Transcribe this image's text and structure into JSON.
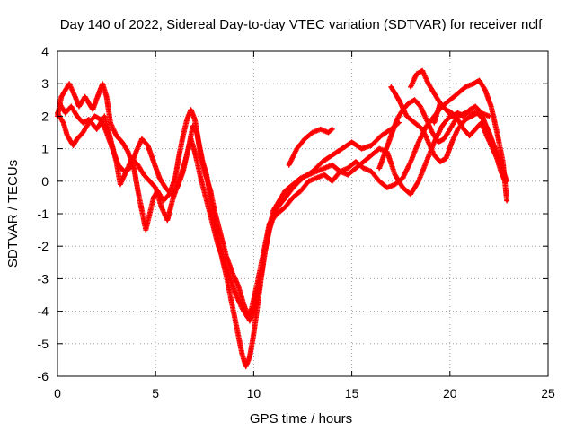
{
  "chart_data": {
    "type": "scatter",
    "title": "Day 140 of 2022, Sidereal Day-to-day VTEC variation (SDTVAR) for receiver nclf",
    "xlabel": "GPS time / hours",
    "ylabel": "SDTVAR / TECUs",
    "xlim": [
      0,
      25
    ],
    "ylim": [
      -6,
      4
    ],
    "xticks": [
      0,
      5,
      10,
      15,
      20,
      25
    ],
    "yticks": [
      -6,
      -5,
      -4,
      -3,
      -2,
      -1,
      0,
      1,
      2,
      3,
      4
    ],
    "grid": true,
    "marker": "plus",
    "color": "#ff0000",
    "series": [
      {
        "points": [
          [
            0.0,
            2.0
          ],
          [
            0.2,
            2.6
          ],
          [
            0.6,
            3.0
          ],
          [
            0.9,
            2.6
          ],
          [
            1.1,
            2.3
          ],
          [
            1.4,
            2.6
          ],
          [
            1.8,
            2.2
          ],
          [
            2.1,
            2.7
          ],
          [
            2.3,
            3.0
          ],
          [
            2.5,
            2.6
          ],
          [
            2.7,
            1.8
          ],
          [
            3.0,
            1.4
          ],
          [
            3.3,
            1.2
          ],
          [
            3.6,
            0.9
          ],
          [
            3.9,
            0.4
          ],
          [
            4.1,
            -0.3
          ],
          [
            4.3,
            -0.9
          ],
          [
            4.5,
            -1.5
          ],
          [
            4.7,
            -1.0
          ],
          [
            4.9,
            -0.5
          ],
          [
            5.1,
            -0.3
          ],
          [
            5.4,
            -0.6
          ],
          [
            5.7,
            -0.4
          ],
          [
            6.0,
            0.1
          ],
          [
            6.2,
            0.8
          ],
          [
            6.4,
            1.4
          ],
          [
            6.6,
            1.9
          ],
          [
            6.8,
            2.2
          ],
          [
            7.0,
            1.9
          ],
          [
            7.2,
            1.2
          ],
          [
            7.4,
            0.6
          ],
          [
            7.6,
            0.2
          ],
          [
            7.8,
            -0.5
          ],
          [
            8.0,
            -1.2
          ],
          [
            8.2,
            -1.8
          ],
          [
            8.4,
            -2.4
          ],
          [
            8.6,
            -2.9
          ],
          [
            8.8,
            -3.5
          ],
          [
            9.0,
            -4.1
          ],
          [
            9.2,
            -4.7
          ],
          [
            9.4,
            -5.3
          ],
          [
            9.6,
            -5.7
          ],
          [
            9.8,
            -5.4
          ],
          [
            10.0,
            -4.7
          ],
          [
            10.2,
            -3.8
          ],
          [
            10.4,
            -2.9
          ],
          [
            10.6,
            -2.1
          ],
          [
            10.8,
            -1.4
          ],
          [
            11.0,
            -0.9
          ],
          [
            11.3,
            -0.6
          ],
          [
            11.6,
            -0.3
          ],
          [
            12.0,
            -0.1
          ],
          [
            12.4,
            0.1
          ],
          [
            12.8,
            0.2
          ],
          [
            13.2,
            0.3
          ],
          [
            13.6,
            0.4
          ],
          [
            14.0,
            0.5
          ],
          [
            14.4,
            0.3
          ],
          [
            14.8,
            0.4
          ],
          [
            15.2,
            0.6
          ],
          [
            15.6,
            0.4
          ],
          [
            16.0,
            0.3
          ],
          [
            16.4,
            0.0
          ],
          [
            16.8,
            -0.2
          ],
          [
            17.2,
            -0.1
          ],
          [
            17.6,
            0.1
          ],
          [
            18.0,
            0.6
          ],
          [
            18.4,
            1.2
          ],
          [
            18.8,
            1.7
          ],
          [
            19.2,
            2.0
          ],
          [
            19.6,
            2.3
          ],
          [
            20.0,
            2.5
          ],
          [
            20.4,
            2.7
          ],
          [
            20.8,
            2.9
          ],
          [
            21.2,
            3.0
          ],
          [
            21.5,
            3.1
          ],
          [
            21.8,
            2.8
          ],
          [
            22.1,
            2.3
          ],
          [
            22.4,
            1.5
          ],
          [
            22.7,
            0.6
          ],
          [
            22.9,
            -0.6
          ]
        ]
      },
      {
        "points": [
          [
            0.0,
            2.1
          ],
          [
            0.3,
            1.8
          ],
          [
            0.5,
            1.4
          ],
          [
            0.8,
            1.1
          ],
          [
            1.0,
            1.3
          ],
          [
            1.3,
            1.5
          ],
          [
            1.6,
            1.8
          ],
          [
            1.9,
            2.0
          ],
          [
            2.2,
            1.9
          ],
          [
            2.5,
            1.5
          ],
          [
            2.8,
            1.0
          ],
          [
            3.1,
            0.5
          ],
          [
            3.4,
            0.3
          ],
          [
            3.7,
            0.4
          ],
          [
            4.0,
            0.9
          ],
          [
            4.3,
            1.3
          ],
          [
            4.6,
            1.1
          ],
          [
            4.9,
            0.6
          ],
          [
            5.2,
            0.1
          ],
          [
            5.5,
            -0.2
          ],
          [
            5.8,
            -0.4
          ],
          [
            6.1,
            -0.2
          ],
          [
            6.4,
            0.3
          ],
          [
            6.7,
            1.1
          ],
          [
            6.9,
            1.7
          ],
          [
            7.1,
            1.5
          ],
          [
            7.3,
            0.8
          ],
          [
            7.5,
            0.3
          ],
          [
            7.8,
            -0.3
          ],
          [
            8.0,
            -0.9
          ],
          [
            8.3,
            -1.6
          ],
          [
            8.6,
            -2.3
          ],
          [
            8.9,
            -2.8
          ],
          [
            9.2,
            -3.2
          ],
          [
            9.5,
            -3.8
          ],
          [
            9.8,
            -4.3
          ],
          [
            10.0,
            -4.0
          ],
          [
            10.3,
            -3.2
          ],
          [
            10.5,
            -2.4
          ],
          [
            10.8,
            -1.5
          ],
          [
            11.1,
            -0.9
          ],
          [
            11.5,
            -0.6
          ],
          [
            12.0,
            -0.2
          ],
          [
            12.5,
            0.1
          ],
          [
            13.0,
            0.3
          ],
          [
            13.5,
            0.6
          ],
          [
            14.0,
            0.8
          ],
          [
            14.5,
            1.0
          ],
          [
            15.0,
            1.2
          ],
          [
            15.5,
            1.0
          ],
          [
            16.0,
            1.1
          ],
          [
            16.5,
            1.4
          ],
          [
            17.0,
            1.6
          ],
          [
            17.4,
            1.8
          ]
        ]
      },
      {
        "points": [
          [
            11.8,
            0.5
          ],
          [
            12.2,
            1.0
          ],
          [
            12.6,
            1.3
          ],
          [
            13.0,
            1.5
          ],
          [
            13.4,
            1.6
          ],
          [
            13.8,
            1.5
          ],
          [
            14.0,
            1.6
          ]
        ]
      },
      {
        "points": [
          [
            0.1,
            2.4
          ],
          [
            0.4,
            2.1
          ],
          [
            0.7,
            2.3
          ],
          [
            1.0,
            2.0
          ],
          [
            1.3,
            1.8
          ],
          [
            1.6,
            1.9
          ],
          [
            2.0,
            1.6
          ],
          [
            2.4,
            2.0
          ],
          [
            2.7,
            1.3
          ],
          [
            3.0,
            0.6
          ],
          [
            3.2,
            -0.1
          ],
          [
            3.5,
            0.3
          ],
          [
            3.8,
            0.7
          ],
          [
            4.1,
            0.5
          ],
          [
            4.4,
            0.2
          ],
          [
            4.7,
            0.0
          ],
          [
            5.0,
            -0.2
          ],
          [
            5.3,
            -0.8
          ],
          [
            5.6,
            -1.2
          ],
          [
            5.9,
            -0.5
          ],
          [
            6.2,
            0.0
          ],
          [
            6.5,
            0.6
          ],
          [
            6.8,
            1.3
          ],
          [
            7.0,
            0.9
          ],
          [
            7.3,
            0.1
          ],
          [
            7.6,
            -0.6
          ],
          [
            7.9,
            -1.3
          ],
          [
            8.2,
            -2.0
          ],
          [
            8.5,
            -2.5
          ],
          [
            8.8,
            -3.0
          ],
          [
            9.1,
            -3.5
          ],
          [
            9.4,
            -3.9
          ],
          [
            9.7,
            -4.2
          ],
          [
            9.9,
            -3.9
          ],
          [
            10.2,
            -3.1
          ],
          [
            10.5,
            -2.2
          ],
          [
            10.8,
            -1.3
          ],
          [
            11.2,
            -1.0
          ],
          [
            11.6,
            -0.8
          ],
          [
            12.0,
            -0.5
          ],
          [
            12.4,
            -0.3
          ],
          [
            12.8,
            0.0
          ],
          [
            13.2,
            0.1
          ],
          [
            13.6,
            0.2
          ],
          [
            14.0,
            0.0
          ],
          [
            14.4,
            0.3
          ],
          [
            14.8,
            0.2
          ],
          [
            15.2,
            0.4
          ],
          [
            15.6,
            0.6
          ],
          [
            16.0,
            0.8
          ],
          [
            16.4,
            1.0
          ],
          [
            16.8,
            0.9
          ],
          [
            17.2,
            0.2
          ],
          [
            17.6,
            -0.2
          ],
          [
            18.0,
            -0.4
          ],
          [
            18.4,
            0.0
          ],
          [
            18.8,
            0.6
          ],
          [
            19.2,
            1.2
          ],
          [
            19.6,
            1.7
          ],
          [
            20.0,
            2.0
          ],
          [
            20.4,
            2.0
          ],
          [
            20.8,
            2.1
          ],
          [
            21.2,
            2.1
          ],
          [
            21.6,
            2.1
          ],
          [
            22.0,
            1.4
          ],
          [
            22.3,
            0.9
          ],
          [
            22.6,
            0.3
          ],
          [
            22.8,
            0.0
          ]
        ]
      },
      {
        "points": [
          [
            17.0,
            2.9
          ],
          [
            17.4,
            2.5
          ],
          [
            17.8,
            2.0
          ],
          [
            18.2,
            1.8
          ],
          [
            18.6,
            1.6
          ],
          [
            18.9,
            1.2
          ],
          [
            19.2,
            0.8
          ],
          [
            19.5,
            0.6
          ],
          [
            19.8,
            0.7
          ],
          [
            20.1,
            1.2
          ],
          [
            20.4,
            1.6
          ],
          [
            20.8,
            1.9
          ],
          [
            21.1,
            2.0
          ],
          [
            21.4,
            2.1
          ],
          [
            21.7,
            1.9
          ],
          [
            22.0,
            1.5
          ],
          [
            22.3,
            1.0
          ],
          [
            22.6,
            0.5
          ],
          [
            22.9,
            0.0
          ]
        ]
      },
      {
        "points": [
          [
            18.0,
            2.9
          ],
          [
            18.3,
            3.3
          ],
          [
            18.6,
            3.4
          ],
          [
            18.9,
            3.0
          ],
          [
            19.2,
            2.7
          ],
          [
            19.5,
            2.4
          ],
          [
            19.8,
            2.2
          ],
          [
            20.1,
            2.1
          ],
          [
            20.4,
            1.9
          ],
          [
            20.7,
            1.6
          ],
          [
            21.0,
            1.4
          ],
          [
            21.3,
            1.6
          ],
          [
            21.6,
            1.8
          ],
          [
            21.8,
            1.5
          ],
          [
            22.1,
            1.1
          ],
          [
            22.4,
            0.7
          ],
          [
            22.7,
            0.3
          ],
          [
            22.8,
            0.0
          ]
        ]
      },
      {
        "points": [
          [
            19.2,
            1.8
          ],
          [
            19.5,
            2.4
          ],
          [
            19.8,
            2.2
          ],
          [
            20.1,
            2.0
          ],
          [
            20.4,
            2.1
          ],
          [
            20.7,
            2.0
          ],
          [
            21.0,
            2.2
          ],
          [
            21.3,
            2.3
          ],
          [
            21.6,
            2.1
          ],
          [
            22.0,
            2.0
          ]
        ]
      },
      {
        "points": [
          [
            16.4,
            0.4
          ],
          [
            16.7,
            0.9
          ],
          [
            17.0,
            1.4
          ],
          [
            17.3,
            1.9
          ],
          [
            17.6,
            2.2
          ],
          [
            17.9,
            2.4
          ],
          [
            18.2,
            2.5
          ],
          [
            18.5,
            2.3
          ],
          [
            18.8,
            1.9
          ],
          [
            19.1,
            1.5
          ],
          [
            19.4,
            1.2
          ],
          [
            19.7,
            1.3
          ],
          [
            20.0,
            1.6
          ],
          [
            20.3,
            1.9
          ]
        ]
      }
    ]
  }
}
